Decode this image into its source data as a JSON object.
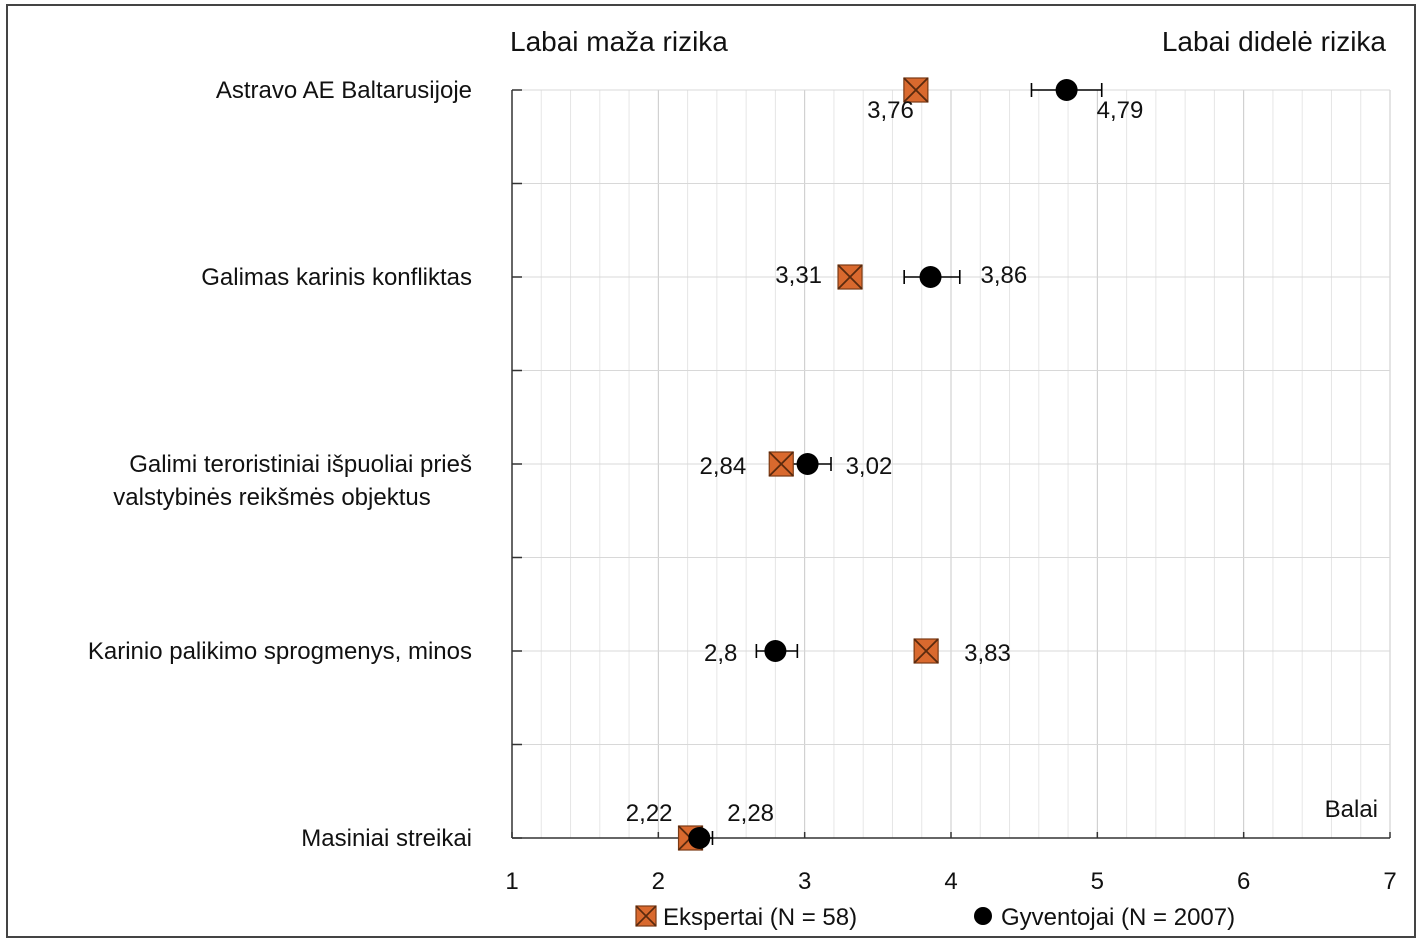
{
  "chart_data": {
    "type": "scatter",
    "orientation": "horizontal",
    "header_left": "Labai maža rizika",
    "header_right": "Labai didelė rizika",
    "xlabel": "Balai",
    "xlim": [
      1,
      7
    ],
    "x_ticks": [
      "1",
      "2",
      "3",
      "4",
      "5",
      "6",
      "7"
    ],
    "grid": true,
    "legend_position": "bottom",
    "categories": [
      [
        "Astravo AE Baltarusijoje"
      ],
      [
        "Galimas karinis konfliktas"
      ],
      [
        "Galimi teroristiniai išpuoliai prieš",
        "valstybinės reikšmės objektus"
      ],
      [
        "Karinio palikimo sprogmenys, minos"
      ],
      [
        "Masiniai streikai"
      ]
    ],
    "series": [
      {
        "name": "Ekspertai (N = 58)",
        "marker": "crossed-square",
        "color": "#d9692e",
        "values": [
          3.76,
          3.31,
          2.84,
          3.83,
          2.22
        ],
        "labels": [
          "3,76",
          "3,31",
          "2,84",
          "3,83",
          "2,22"
        ]
      },
      {
        "name": "Gyventojai (N = 2007)",
        "marker": "circle",
        "color": "#000000",
        "values": [
          4.79,
          3.86,
          3.02,
          2.8,
          2.28
        ],
        "labels": [
          "4,79",
          "3,86",
          "3,02",
          "2,8",
          "2,28"
        ],
        "error_low": [
          4.55,
          3.68,
          2.88,
          2.67,
          2.19
        ],
        "error_high": [
          5.03,
          4.06,
          3.18,
          2.95,
          2.37
        ]
      }
    ]
  }
}
